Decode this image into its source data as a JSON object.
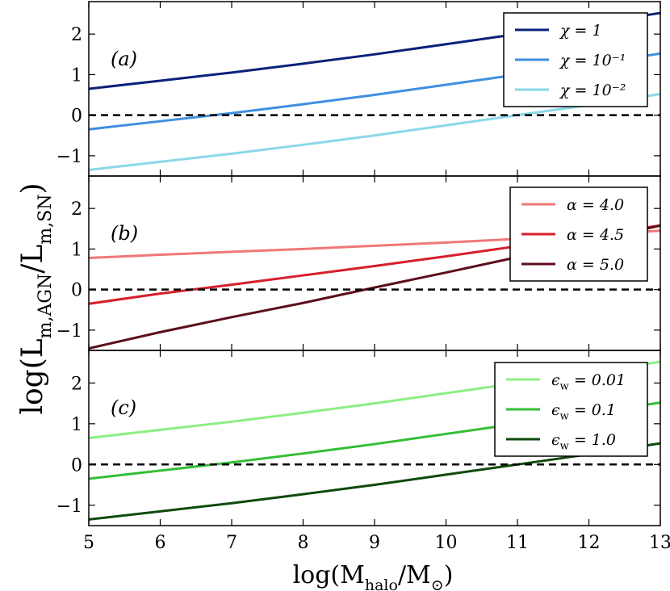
{
  "figure": {
    "xlabel": "log(M_halo/M_⊙)",
    "ylabel": "log(L_m,AGN/L_m,SN)"
  },
  "chart_data": [
    {
      "type": "line",
      "panel_label": "(a)",
      "xlim": [
        5,
        13
      ],
      "ylim": [
        -1.5,
        2.8
      ],
      "xticks": [
        5,
        6,
        7,
        8,
        9,
        10,
        11,
        12,
        13
      ],
      "yticks": [
        -1,
        0,
        1,
        2
      ],
      "zero_line": {
        "y": 0,
        "style": "dashed",
        "color": "#000000"
      },
      "legend_position": "top-right",
      "series": [
        {
          "name": "χ = 1",
          "color": "#0b2179",
          "x": [
            5,
            6,
            7,
            8,
            9,
            10,
            11,
            12,
            13
          ],
          "y": [
            0.65,
            0.85,
            1.05,
            1.27,
            1.5,
            1.75,
            2.0,
            2.25,
            2.52
          ]
        },
        {
          "name": "χ = 10⁻¹",
          "color": "#3f8fe0",
          "x": [
            5,
            6,
            7,
            8,
            9,
            10,
            11,
            12,
            13
          ],
          "y": [
            -0.35,
            -0.15,
            0.05,
            0.27,
            0.5,
            0.75,
            1.0,
            1.25,
            1.52
          ]
        },
        {
          "name": "χ = 10⁻²",
          "color": "#8ad8e6",
          "x": [
            5,
            6,
            7,
            8,
            9,
            10,
            11,
            12,
            13
          ],
          "y": [
            -1.35,
            -1.15,
            -0.95,
            -0.73,
            -0.5,
            -0.25,
            0.0,
            0.25,
            0.52
          ]
        }
      ]
    },
    {
      "type": "line",
      "panel_label": "(b)",
      "xlim": [
        5,
        13
      ],
      "ylim": [
        -1.5,
        2.8
      ],
      "xticks": [
        5,
        6,
        7,
        8,
        9,
        10,
        11,
        12,
        13
      ],
      "yticks": [
        -1,
        0,
        1,
        2
      ],
      "zero_line": {
        "y": 0,
        "style": "dashed",
        "color": "#000000"
      },
      "legend_position": "top-right",
      "series": [
        {
          "name": "α = 4.0",
          "color": "#f07878",
          "x": [
            5,
            6,
            7,
            8,
            9,
            10,
            11,
            12,
            13
          ],
          "y": [
            0.78,
            0.86,
            0.93,
            1.0,
            1.08,
            1.16,
            1.25,
            1.35,
            1.45
          ]
        },
        {
          "name": "α = 4.5",
          "color": "#d81e2a",
          "x": [
            5,
            6,
            7,
            8,
            9,
            10,
            11,
            12,
            13
          ],
          "y": [
            -0.35,
            -0.1,
            0.12,
            0.35,
            0.58,
            0.82,
            1.07,
            1.32,
            1.58
          ]
        },
        {
          "name": "α = 5.0",
          "color": "#5c0e1c",
          "x": [
            5,
            6,
            7,
            8,
            9,
            10,
            11,
            12,
            13
          ],
          "y": [
            -1.45,
            -1.05,
            -0.68,
            -0.33,
            0.05,
            0.42,
            0.8,
            1.18,
            1.58
          ]
        }
      ]
    },
    {
      "type": "line",
      "panel_label": "(c)",
      "xlim": [
        5,
        13
      ],
      "ylim": [
        -1.5,
        2.8
      ],
      "xticks": [
        5,
        6,
        7,
        8,
        9,
        10,
        11,
        12,
        13
      ],
      "yticks": [
        -1,
        0,
        1,
        2
      ],
      "zero_line": {
        "y": 0,
        "style": "dashed",
        "color": "#000000"
      },
      "legend_position": "top-right",
      "series": [
        {
          "name": "ϵ_w = 0.01",
          "color": "#8cee84",
          "x": [
            5,
            6,
            7,
            8,
            9,
            10,
            11,
            12,
            13
          ],
          "y": [
            0.65,
            0.85,
            1.05,
            1.27,
            1.5,
            1.75,
            2.0,
            2.25,
            2.52
          ]
        },
        {
          "name": "ϵ_w = 0.1",
          "color": "#34be34",
          "x": [
            5,
            6,
            7,
            8,
            9,
            10,
            11,
            12,
            13
          ],
          "y": [
            -0.35,
            -0.15,
            0.05,
            0.27,
            0.5,
            0.75,
            1.0,
            1.25,
            1.52
          ]
        },
        {
          "name": "ϵ_w = 1.0",
          "color": "#0e4a0e",
          "x": [
            5,
            6,
            7,
            8,
            9,
            10,
            11,
            12,
            13
          ],
          "y": [
            -1.35,
            -1.15,
            -0.95,
            -0.73,
            -0.5,
            -0.25,
            0.0,
            0.25,
            0.52
          ]
        }
      ]
    }
  ]
}
